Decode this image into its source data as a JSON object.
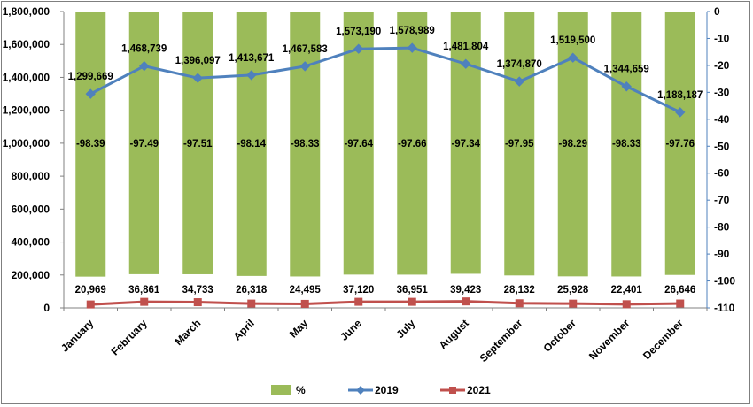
{
  "chart_data": {
    "type": "bar",
    "categories": [
      "January",
      "February",
      "March",
      "April",
      "May",
      "June",
      "July",
      "August",
      "September",
      "October",
      "November",
      "December"
    ],
    "series": [
      {
        "name": "%",
        "kind": "bar",
        "axis": "right",
        "color": "#9bbb59",
        "values": [
          -98.39,
          -97.49,
          -97.51,
          -98.14,
          -98.33,
          -97.64,
          -97.66,
          -97.34,
          -97.95,
          -98.29,
          -98.33,
          -97.76
        ],
        "labels": [
          "-98.39",
          "-97.49",
          "-97.51",
          "-98.14",
          "-98.33",
          "-97.64",
          "-97.66",
          "-97.34",
          "-97.95",
          "-98.29",
          "-98.33",
          "-97.76"
        ]
      },
      {
        "name": "2019",
        "kind": "line",
        "axis": "left",
        "color": "#4f81bd",
        "marker": "diamond",
        "values": [
          1299669,
          1468739,
          1396097,
          1413671,
          1467583,
          1573190,
          1578989,
          1481804,
          1374870,
          1519500,
          1344659,
          1188187
        ],
        "labels": [
          "1,299,669",
          "1,468,739",
          "1,396,097",
          "1,413,671",
          "1,467,583",
          "1,573,190",
          "1,578,989",
          "1,481,804",
          "1,374,870",
          "1,519,500",
          "1,344,659",
          "1,188,187"
        ]
      },
      {
        "name": "2021",
        "kind": "line",
        "axis": "left",
        "color": "#c0504d",
        "marker": "square",
        "values": [
          20969,
          36861,
          34733,
          26318,
          24495,
          37120,
          36951,
          39423,
          28132,
          25928,
          22401,
          26646
        ],
        "labels": [
          "20,969",
          "36,861",
          "34,733",
          "26,318",
          "24,495",
          "37,120",
          "36,951",
          "39,423",
          "28,132",
          "25,928",
          "22,401",
          "26,646"
        ]
      }
    ],
    "left_axis": {
      "min": 0,
      "max": 1800000,
      "step": 200000,
      "tick_labels": [
        "0",
        "200,000",
        "400,000",
        "600,000",
        "800,000",
        "1,000,000",
        "1,200,000",
        "1,400,000",
        "1,600,000",
        "1,800,000"
      ]
    },
    "right_axis": {
      "min": -110,
      "max": 0,
      "step": 10,
      "tick_labels": [
        "-110",
        "-100",
        "-90",
        "-80",
        "-70",
        "-60",
        "-50",
        "-40",
        "-30",
        "-20",
        "-10",
        "0"
      ]
    },
    "grid": false,
    "legend_position": "bottom"
  }
}
